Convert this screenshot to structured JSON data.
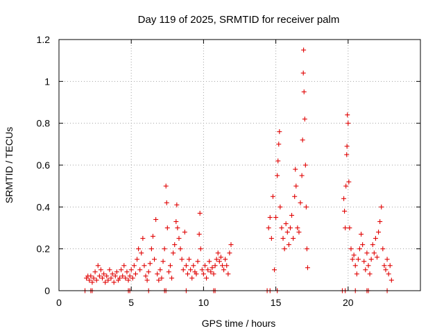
{
  "chart_data": {
    "type": "scatter",
    "title": "Day 119 of 2025, SRMTID for receiver palm",
    "xlabel": "GPS time / hours",
    "ylabel": "SRMTID / TECUs",
    "xlim": [
      0,
      25
    ],
    "ylim": [
      0,
      1.2
    ],
    "xticks": [
      0,
      5,
      10,
      15,
      20
    ],
    "xtick_labels": [
      "0",
      "5",
      "10",
      "15",
      "20"
    ],
    "yticks": [
      0,
      0.2,
      0.4,
      0.6,
      0.8,
      1.0,
      1.2
    ],
    "ytick_labels": [
      "0",
      "0.2",
      "0.4",
      "0.6",
      "0.8",
      "1",
      "1.2"
    ],
    "grid": true,
    "marker": "+",
    "color": "#e00000",
    "series": [
      {
        "name": "SRMTID",
        "points": [
          [
            1.8,
            0.0
          ],
          [
            2.2,
            0.0
          ],
          [
            2.3,
            0.0
          ],
          [
            4.8,
            0.0
          ],
          [
            4.9,
            0.0
          ],
          [
            6.2,
            0.0
          ],
          [
            7.3,
            0.0
          ],
          [
            7.4,
            0.0
          ],
          [
            8.8,
            0.0
          ],
          [
            10.7,
            0.0
          ],
          [
            10.8,
            0.0
          ],
          [
            14.4,
            0.0
          ],
          [
            14.6,
            0.0
          ],
          [
            15.1,
            0.0
          ],
          [
            19.6,
            0.0
          ],
          [
            19.8,
            0.0
          ],
          [
            20.5,
            0.0
          ],
          [
            21.3,
            0.0
          ],
          [
            21.4,
            0.0
          ],
          [
            22.7,
            0.0
          ],
          [
            1.9,
            0.06
          ],
          [
            2.0,
            0.07
          ],
          [
            2.1,
            0.05
          ],
          [
            2.2,
            0.07
          ],
          [
            2.3,
            0.04
          ],
          [
            2.4,
            0.06
          ],
          [
            2.5,
            0.09
          ],
          [
            2.6,
            0.05
          ],
          [
            2.7,
            0.12
          ],
          [
            2.8,
            0.07
          ],
          [
            2.9,
            0.1
          ],
          [
            3.0,
            0.06
          ],
          [
            3.1,
            0.08
          ],
          [
            3.2,
            0.04
          ],
          [
            3.3,
            0.07
          ],
          [
            3.4,
            0.05
          ],
          [
            3.5,
            0.1
          ],
          [
            3.6,
            0.06
          ],
          [
            3.7,
            0.08
          ],
          [
            3.8,
            0.04
          ],
          [
            3.9,
            0.07
          ],
          [
            4.0,
            0.09
          ],
          [
            4.1,
            0.05
          ],
          [
            4.2,
            0.06
          ],
          [
            4.3,
            0.1
          ],
          [
            4.4,
            0.07
          ],
          [
            4.5,
            0.12
          ],
          [
            4.6,
            0.06
          ],
          [
            4.7,
            0.09
          ],
          [
            4.8,
            0.05
          ],
          [
            4.9,
            0.07
          ],
          [
            5.0,
            0.1
          ],
          [
            5.1,
            0.06
          ],
          [
            5.2,
            0.12
          ],
          [
            5.3,
            0.08
          ],
          [
            5.4,
            0.15
          ],
          [
            5.5,
            0.2
          ],
          [
            5.6,
            0.1
          ],
          [
            5.7,
            0.18
          ],
          [
            5.8,
            0.25
          ],
          [
            5.9,
            0.12
          ],
          [
            6.0,
            0.07
          ],
          [
            6.1,
            0.05
          ],
          [
            6.2,
            0.09
          ],
          [
            6.3,
            0.13
          ],
          [
            6.4,
            0.2
          ],
          [
            6.5,
            0.26
          ],
          [
            6.6,
            0.15
          ],
          [
            6.7,
            0.34
          ],
          [
            6.8,
            0.08
          ],
          [
            6.9,
            0.05
          ],
          [
            7.0,
            0.1
          ],
          [
            7.1,
            0.06
          ],
          [
            7.2,
            0.14
          ],
          [
            7.3,
            0.2
          ],
          [
            7.4,
            0.5
          ],
          [
            7.45,
            0.42
          ],
          [
            7.5,
            0.3
          ],
          [
            7.6,
            0.09
          ],
          [
            7.7,
            0.12
          ],
          [
            7.8,
            0.06
          ],
          [
            7.9,
            0.18
          ],
          [
            8.0,
            0.22
          ],
          [
            8.1,
            0.33
          ],
          [
            8.15,
            0.41
          ],
          [
            8.2,
            0.3
          ],
          [
            8.3,
            0.25
          ],
          [
            8.4,
            0.2
          ],
          [
            8.5,
            0.15
          ],
          [
            8.6,
            0.1
          ],
          [
            8.7,
            0.28
          ],
          [
            8.8,
            0.12
          ],
          [
            8.9,
            0.08
          ],
          [
            9.0,
            0.15
          ],
          [
            9.1,
            0.1
          ],
          [
            9.2,
            0.06
          ],
          [
            9.3,
            0.12
          ],
          [
            9.4,
            0.09
          ],
          [
            9.5,
            0.08
          ],
          [
            9.6,
            0.14
          ],
          [
            9.7,
            0.27
          ],
          [
            9.75,
            0.37
          ],
          [
            9.8,
            0.2
          ],
          [
            9.9,
            0.1
          ],
          [
            10.0,
            0.08
          ],
          [
            10.1,
            0.12
          ],
          [
            10.2,
            0.06
          ],
          [
            10.3,
            0.1
          ],
          [
            10.4,
            0.14
          ],
          [
            10.5,
            0.09
          ],
          [
            10.6,
            0.11
          ],
          [
            10.7,
            0.08
          ],
          [
            10.8,
            0.12
          ],
          [
            10.9,
            0.15
          ],
          [
            11.0,
            0.18
          ],
          [
            11.1,
            0.14
          ],
          [
            11.2,
            0.16
          ],
          [
            11.3,
            0.12
          ],
          [
            11.4,
            0.1
          ],
          [
            11.5,
            0.15
          ],
          [
            11.6,
            0.12
          ],
          [
            11.7,
            0.08
          ],
          [
            11.8,
            0.18
          ],
          [
            11.9,
            0.22
          ],
          [
            14.5,
            0.3
          ],
          [
            14.6,
            0.35
          ],
          [
            14.7,
            0.25
          ],
          [
            14.8,
            0.45
          ],
          [
            14.9,
            0.1
          ],
          [
            15.0,
            0.35
          ],
          [
            15.1,
            0.55
          ],
          [
            15.15,
            0.62
          ],
          [
            15.2,
            0.7
          ],
          [
            15.25,
            0.76
          ],
          [
            15.3,
            0.4
          ],
          [
            15.4,
            0.3
          ],
          [
            15.5,
            0.25
          ],
          [
            15.6,
            0.2
          ],
          [
            15.7,
            0.32
          ],
          [
            15.8,
            0.28
          ],
          [
            15.9,
            0.22
          ],
          [
            16.0,
            0.3
          ],
          [
            16.1,
            0.36
          ],
          [
            16.2,
            0.25
          ],
          [
            16.3,
            0.45
          ],
          [
            16.35,
            0.58
          ],
          [
            16.4,
            0.5
          ],
          [
            16.5,
            0.3
          ],
          [
            16.6,
            0.28
          ],
          [
            16.7,
            0.42
          ],
          [
            16.8,
            0.55
          ],
          [
            16.85,
            0.72
          ],
          [
            16.9,
            1.04
          ],
          [
            16.92,
            1.15
          ],
          [
            16.95,
            0.95
          ],
          [
            17.0,
            0.82
          ],
          [
            17.05,
            0.6
          ],
          [
            17.1,
            0.4
          ],
          [
            17.15,
            0.2
          ],
          [
            17.2,
            0.11
          ],
          [
            19.7,
            0.44
          ],
          [
            19.75,
            0.38
          ],
          [
            19.8,
            0.3
          ],
          [
            19.85,
            0.5
          ],
          [
            19.9,
            0.65
          ],
          [
            19.92,
            0.69
          ],
          [
            19.95,
            0.84
          ],
          [
            20.0,
            0.8
          ],
          [
            20.05,
            0.52
          ],
          [
            20.1,
            0.3
          ],
          [
            20.2,
            0.2
          ],
          [
            20.3,
            0.15
          ],
          [
            20.4,
            0.17
          ],
          [
            20.5,
            0.12
          ],
          [
            20.6,
            0.08
          ],
          [
            20.7,
            0.15
          ],
          [
            20.8,
            0.2
          ],
          [
            20.9,
            0.27
          ],
          [
            21.0,
            0.22
          ],
          [
            21.1,
            0.14
          ],
          [
            21.2,
            0.1
          ],
          [
            21.3,
            0.18
          ],
          [
            21.4,
            0.12
          ],
          [
            21.5,
            0.08
          ],
          [
            21.6,
            0.15
          ],
          [
            21.7,
            0.22
          ],
          [
            21.8,
            0.18
          ],
          [
            21.9,
            0.25
          ],
          [
            22.0,
            0.16
          ],
          [
            22.1,
            0.28
          ],
          [
            22.2,
            0.33
          ],
          [
            22.3,
            0.4
          ],
          [
            22.4,
            0.2
          ],
          [
            22.5,
            0.12
          ],
          [
            22.6,
            0.1
          ],
          [
            22.7,
            0.15
          ],
          [
            22.8,
            0.08
          ],
          [
            22.9,
            0.12
          ],
          [
            23.0,
            0.05
          ]
        ]
      }
    ]
  }
}
